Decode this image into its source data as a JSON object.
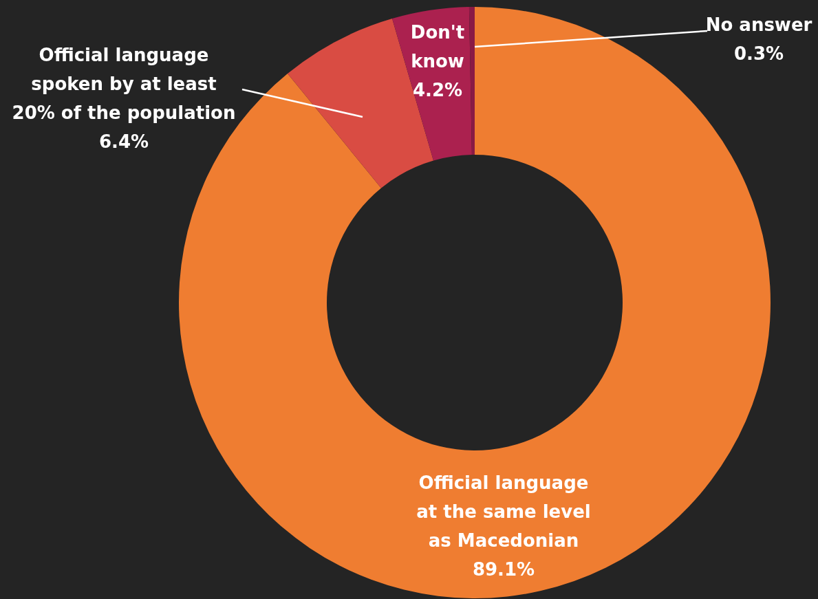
{
  "chart_data": {
    "type": "donut",
    "categories": [
      "Official language\nat the same level\n as Macedonian",
      "Official language\nspoken by at least\n20% of the population",
      "Don't\nknow",
      "No answer"
    ],
    "values": [
      89.1,
      6.4,
      4.2,
      0.3
    ],
    "colors": [
      "#ef7d31",
      "#d94c43",
      "#ab214f",
      "#8a1a45"
    ],
    "value_labels": [
      "89.1%",
      "6.4%",
      "4.2%",
      "0.3%"
    ]
  }
}
